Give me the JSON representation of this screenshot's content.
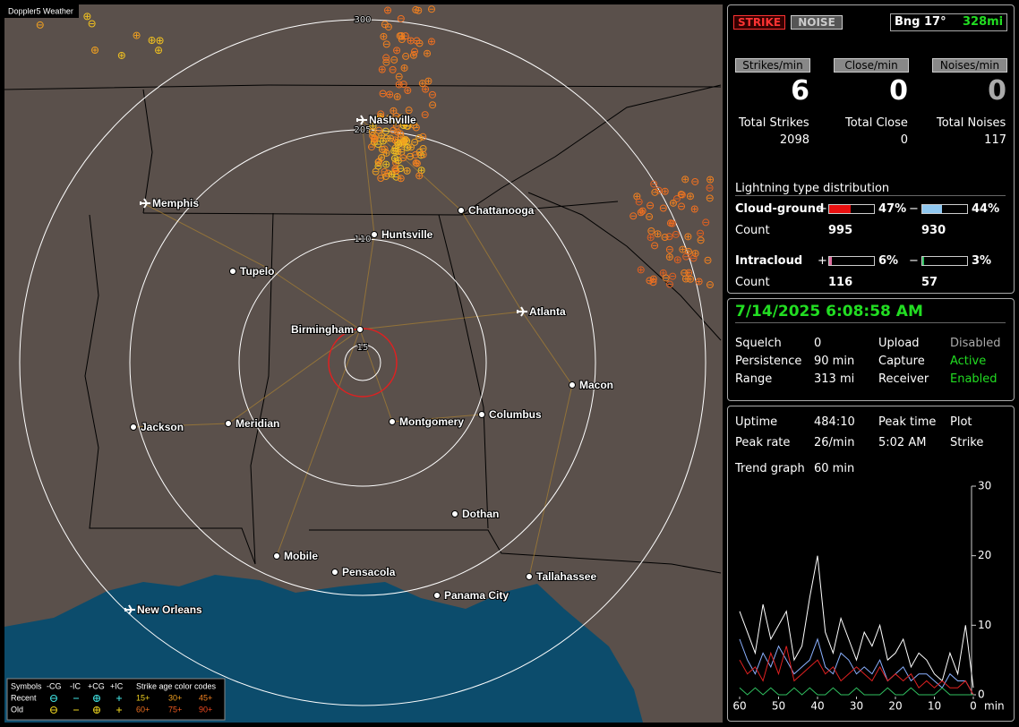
{
  "app_title": "Doppler5 Weather",
  "map": {
    "range_rings": [
      "15",
      "110",
      "205",
      "300"
    ],
    "cities": [
      "Nashville",
      "Memphis",
      "Chattanooga",
      "Huntsville",
      "Tupelo",
      "Atlanta",
      "Birmingham",
      "Macon",
      "Jackson",
      "Meridian",
      "Montgomery",
      "Columbus",
      "Dothan",
      "Mobile",
      "Pensacola",
      "Tallahassee",
      "Panama City",
      "New Orleans"
    ],
    "legend": {
      "symbols": "Symbols",
      "neg_cg": "-CG",
      "neg_ic": "-IC",
      "pos_cg": "+CG",
      "pos_ic": "+IC",
      "age_title": "Strike age color codes",
      "recent": "Recent",
      "old": "Old",
      "ages": [
        "15+",
        "30+",
        "45+",
        "60+",
        "75+",
        "90+"
      ]
    }
  },
  "status": {
    "strike_button": "STRIKE",
    "noise_button": "NOISE",
    "bearing": "Bng 17°",
    "distance": "328mi",
    "rates": [
      {
        "label": "Strikes/min",
        "value": 6
      },
      {
        "label": "Close/min",
        "value": 0
      },
      {
        "label": "Noises/min",
        "value": 0
      }
    ],
    "totals": [
      {
        "label": "Total Strikes",
        "value": 2098
      },
      {
        "label": "Total Close",
        "value": 0
      },
      {
        "label": "Total Noises",
        "value": 117
      }
    ],
    "distribution": {
      "title": "Lightning type distribution",
      "count_label": "Count",
      "types": [
        {
          "label": "Cloud-ground",
          "pos": {
            "sign": "+",
            "value": 47,
            "label": "47%",
            "count": 995
          },
          "neg": {
            "sign": "−",
            "value": 44,
            "label": "44%",
            "count": 930
          }
        },
        {
          "label": "Intracloud",
          "pos": {
            "sign": "+",
            "value": 6,
            "label": "6%",
            "count": 116
          },
          "neg": {
            "sign": "−",
            "value": 3,
            "label": "3%",
            "count": 57
          }
        }
      ]
    }
  },
  "settings": {
    "datetime": "7/14/2025 6:08:58 AM",
    "rows": [
      [
        "Squelch",
        "0",
        "Upload",
        "Disabled"
      ],
      [
        "Persistence",
        "90 min",
        "Capture",
        "Active"
      ],
      [
        "Range",
        "313 mi",
        "Receiver",
        "Enabled"
      ]
    ]
  },
  "trend": {
    "rows": [
      [
        "Uptime",
        "484:10",
        "Peak time",
        "Plot"
      ],
      [
        "Peak rate",
        "26/min",
        "5:02 AM",
        "Strike"
      ]
    ],
    "graph_label": "Trend graph",
    "graph_span": "60 min"
  },
  "chart_data": {
    "type": "line",
    "x": [
      60,
      58,
      56,
      54,
      52,
      50,
      48,
      46,
      44,
      42,
      40,
      38,
      36,
      34,
      32,
      30,
      28,
      26,
      24,
      22,
      20,
      18,
      16,
      14,
      12,
      10,
      8,
      6,
      4,
      2,
      0
    ],
    "series": [
      {
        "color": "#ffffff",
        "values": [
          12,
          9,
          6,
          13,
          8,
          10,
          12,
          5,
          7,
          14,
          20,
          9,
          6,
          11,
          8,
          5,
          9,
          7,
          10,
          5,
          6,
          8,
          4,
          6,
          5,
          3,
          2,
          6,
          3,
          10,
          1
        ]
      },
      {
        "color": "#8ab0ff",
        "values": [
          8,
          5,
          3,
          6,
          4,
          7,
          5,
          3,
          4,
          5,
          8,
          4,
          3,
          6,
          5,
          3,
          4,
          3,
          5,
          2,
          3,
          4,
          2,
          3,
          3,
          2,
          1,
          3,
          2,
          2,
          0
        ]
      },
      {
        "color": "#e02020",
        "values": [
          5,
          3,
          4,
          2,
          6,
          3,
          7,
          2,
          3,
          4,
          5,
          3,
          4,
          2,
          3,
          4,
          3,
          2,
          4,
          2,
          3,
          2,
          3,
          1,
          2,
          1,
          2,
          1,
          1,
          2,
          0
        ]
      },
      {
        "color": "#30c060",
        "values": [
          1,
          0,
          1,
          0,
          1,
          0,
          0,
          1,
          0,
          1,
          0,
          0,
          1,
          0,
          0,
          1,
          0,
          0,
          0,
          1,
          0,
          0,
          1,
          0,
          0,
          0,
          1,
          0,
          0,
          0,
          0
        ]
      }
    ],
    "xlim": [
      60,
      0
    ],
    "ylim": [
      0,
      30
    ],
    "xticks": [
      60,
      50,
      40,
      30,
      20,
      10,
      0
    ],
    "yticks": [
      0,
      10,
      20,
      30
    ],
    "x_unit": "min"
  }
}
